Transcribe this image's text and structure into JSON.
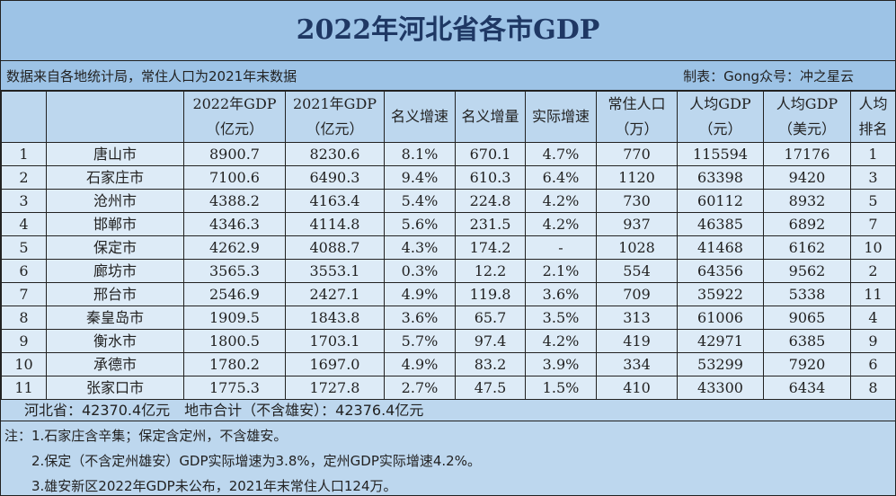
{
  "title": "2022年河北省各市GDP",
  "source": "数据来自各地统计局，常住人口为2021年末数据",
  "author": "制表：Gong众号：冲之星云",
  "headers": [
    [
      "",
      ""
    ],
    [
      "",
      ""
    ],
    [
      "2022年GDP",
      "（亿元）"
    ],
    [
      "2021年GDP",
      "（亿元）"
    ],
    [
      "名义增速",
      ""
    ],
    [
      "名义增量",
      ""
    ],
    [
      "实际增速",
      ""
    ],
    [
      "常住人口",
      "（万）"
    ],
    [
      "人均GDP",
      "（元）"
    ],
    [
      "人均GDP",
      "（美元）"
    ],
    [
      "人均",
      "排名"
    ]
  ],
  "rows": [
    [
      "1",
      "唐山市",
      "8900.7",
      "8230.6",
      "8.1%",
      "670.1",
      "4.7%",
      "770",
      "115594",
      "17176",
      "1"
    ],
    [
      "2",
      "石家庄市",
      "7100.6",
      "6490.3",
      "9.4%",
      "610.3",
      "6.4%",
      "1120",
      "63398",
      "9420",
      "3"
    ],
    [
      "3",
      "沧州市",
      "4388.2",
      "4163.4",
      "5.4%",
      "224.8",
      "4.2%",
      "730",
      "60112",
      "8932",
      "5"
    ],
    [
      "4",
      "邯郸市",
      "4346.3",
      "4114.8",
      "5.6%",
      "231.5",
      "4.2%",
      "937",
      "46385",
      "6892",
      "7"
    ],
    [
      "5",
      "保定市",
      "4262.9",
      "4088.7",
      "4.3%",
      "174.2",
      "-",
      "1028",
      "41468",
      "6162",
      "10"
    ],
    [
      "6",
      "廊坊市",
      "3565.3",
      "3553.1",
      "0.3%",
      "12.2",
      "2.1%",
      "554",
      "64356",
      "9562",
      "2"
    ],
    [
      "7",
      "邢台市",
      "2546.9",
      "2427.1",
      "4.9%",
      "119.8",
      "3.6%",
      "709",
      "35922",
      "5338",
      "11"
    ],
    [
      "8",
      "秦皇岛市",
      "1909.5",
      "1843.8",
      "3.6%",
      "65.7",
      "3.5%",
      "313",
      "61006",
      "9065",
      "4"
    ],
    [
      "9",
      "衡水市",
      "1800.5",
      "1703.1",
      "5.7%",
      "97.4",
      "4.2%",
      "419",
      "42971",
      "6385",
      "9"
    ],
    [
      "10",
      "承德市",
      "1780.2",
      "1697.0",
      "4.9%",
      "83.2",
      "3.9%",
      "334",
      "53299",
      "7920",
      "6"
    ],
    [
      "11",
      "张家口市",
      "1775.3",
      "1727.8",
      "2.7%",
      "47.5",
      "1.5%",
      "410",
      "43300",
      "6434",
      "8"
    ]
  ],
  "total": "河北省：42370.4亿元　地市合计（不含雄安）：42376.4亿元",
  "notes": [
    "注：1.石家庄含辛集；保定含定州，不含雄安。",
    "2.保定（不含定州雄安）GDP实际增速为3.8%，定州GDP实际增速4.2%。",
    "3.雄安新区2022年GDP未公布，2021年末常住人口124万。"
  ],
  "colors": {
    "title_bg": "#9dc3e6",
    "header_bg": "#bdd7ee",
    "row_bg": "#ddebf7",
    "title_text": "#1f3864"
  }
}
